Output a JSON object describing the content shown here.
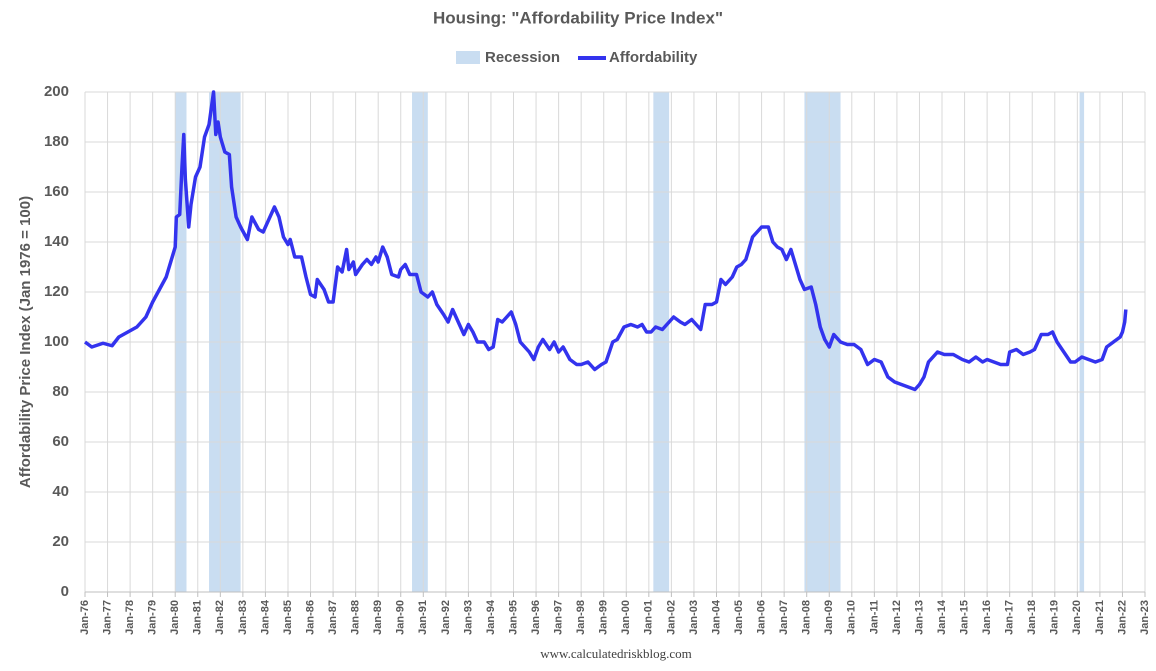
{
  "chart_data": {
    "type": "line",
    "title": "Housing: \"Affordability Price Index\"",
    "y_axis_label": "Affordability Price Index (Jan 1976 = 100)",
    "source": "www.calculatedriskblog.com",
    "grid": true,
    "xlim": [
      1976,
      2023
    ],
    "ylim": [
      0,
      200
    ],
    "yticks": [
      0,
      20,
      40,
      60,
      80,
      100,
      120,
      140,
      160,
      180,
      200
    ],
    "xticks": [
      {
        "value": 1976,
        "label": "Jan-76"
      },
      {
        "value": 1977,
        "label": "Jan-77"
      },
      {
        "value": 1978,
        "label": "Jan-78"
      },
      {
        "value": 1979,
        "label": "Jan-79"
      },
      {
        "value": 1980,
        "label": "Jan-80"
      },
      {
        "value": 1981,
        "label": "Jan-81"
      },
      {
        "value": 1982,
        "label": "Jan-82"
      },
      {
        "value": 1983,
        "label": "Jan-83"
      },
      {
        "value": 1984,
        "label": "Jan-84"
      },
      {
        "value": 1985,
        "label": "Jan-85"
      },
      {
        "value": 1986,
        "label": "Jan-86"
      },
      {
        "value": 1987,
        "label": "Jan-87"
      },
      {
        "value": 1988,
        "label": "Jan-88"
      },
      {
        "value": 1989,
        "label": "Jan-89"
      },
      {
        "value": 1990,
        "label": "Jan-90"
      },
      {
        "value": 1991,
        "label": "Jan-91"
      },
      {
        "value": 1992,
        "label": "Jan-92"
      },
      {
        "value": 1993,
        "label": "Jan-93"
      },
      {
        "value": 1994,
        "label": "Jan-94"
      },
      {
        "value": 1995,
        "label": "Jan-95"
      },
      {
        "value": 1996,
        "label": "Jan-96"
      },
      {
        "value": 1997,
        "label": "Jan-97"
      },
      {
        "value": 1998,
        "label": "Jan-98"
      },
      {
        "value": 1999,
        "label": "Jan-99"
      },
      {
        "value": 2000,
        "label": "Jan-00"
      },
      {
        "value": 2001,
        "label": "Jan-01"
      },
      {
        "value": 2002,
        "label": "Jan-02"
      },
      {
        "value": 2003,
        "label": "Jan-03"
      },
      {
        "value": 2004,
        "label": "Jan-04"
      },
      {
        "value": 2005,
        "label": "Jan-05"
      },
      {
        "value": 2006,
        "label": "Jan-06"
      },
      {
        "value": 2007,
        "label": "Jan-07"
      },
      {
        "value": 2008,
        "label": "Jan-08"
      },
      {
        "value": 2009,
        "label": "Jan-09"
      },
      {
        "value": 2010,
        "label": "Jan-10"
      },
      {
        "value": 2011,
        "label": "Jan-11"
      },
      {
        "value": 2012,
        "label": "Jan-12"
      },
      {
        "value": 2013,
        "label": "Jan-13"
      },
      {
        "value": 2014,
        "label": "Jan-14"
      },
      {
        "value": 2015,
        "label": "Jan-15"
      },
      {
        "value": 2016,
        "label": "Jan-16"
      },
      {
        "value": 2017,
        "label": "Jan-17"
      },
      {
        "value": 2018,
        "label": "Jan-18"
      },
      {
        "value": 2019,
        "label": "Jan-19"
      },
      {
        "value": 2020,
        "label": "Jan-20"
      },
      {
        "value": 2021,
        "label": "Jan-21"
      },
      {
        "value": 2022,
        "label": "Jan-22"
      },
      {
        "value": 2023,
        "label": "Jan-23"
      }
    ],
    "recessions": {
      "name": "Recession",
      "color": "#c9ddf1",
      "spans": [
        [
          1980.0,
          1980.5
        ],
        [
          1981.5,
          1982.9
        ],
        [
          1990.5,
          1991.2
        ],
        [
          2001.2,
          2001.9
        ],
        [
          2007.9,
          2009.5
        ],
        [
          2020.1,
          2020.3
        ]
      ]
    },
    "x": [
      1976.0,
      1976.3,
      1976.8,
      1977.2,
      1977.5,
      1977.9,
      1978.3,
      1978.7,
      1979.0,
      1979.3,
      1979.6,
      1979.8,
      1980.0,
      1980.05,
      1980.2,
      1980.3,
      1980.38,
      1980.45,
      1980.6,
      1980.7,
      1980.9,
      1981.1,
      1981.3,
      1981.5,
      1981.7,
      1981.8,
      1981.9,
      1982.0,
      1982.2,
      1982.4,
      1982.5,
      1982.7,
      1982.9,
      1983.2,
      1983.4,
      1983.7,
      1983.9,
      1984.1,
      1984.4,
      1984.6,
      1984.8,
      1985.0,
      1985.1,
      1985.3,
      1985.6,
      1985.8,
      1986.0,
      1986.2,
      1986.3,
      1986.6,
      1986.8,
      1987.0,
      1987.2,
      1987.4,
      1987.6,
      1987.7,
      1987.9,
      1988.0,
      1988.3,
      1988.5,
      1988.7,
      1988.9,
      1989.0,
      1989.2,
      1989.4,
      1989.6,
      1989.9,
      1990.0,
      1990.2,
      1990.4,
      1990.7,
      1990.9,
      1991.2,
      1991.4,
      1991.6,
      1991.9,
      1992.1,
      1992.3,
      1992.6,
      1992.8,
      1993.0,
      1993.2,
      1993.4,
      1993.7,
      1993.9,
      1994.1,
      1994.3,
      1994.5,
      1994.7,
      1994.9,
      1995.1,
      1995.3,
      1995.5,
      1995.7,
      1995.9,
      1996.1,
      1996.3,
      1996.6,
      1996.8,
      1997.0,
      1997.2,
      1997.5,
      1997.8,
      1998.0,
      1998.3,
      1998.6,
      1998.9,
      1999.1,
      1999.4,
      1999.6,
      1999.9,
      2000.2,
      2000.5,
      2000.7,
      2000.9,
      2001.1,
      2001.3,
      2001.6,
      2001.9,
      2002.1,
      2002.4,
      2002.6,
      2002.9,
      2003.1,
      2003.3,
      2003.5,
      2003.8,
      2004.0,
      2004.2,
      2004.4,
      2004.7,
      2004.9,
      2005.1,
      2005.3,
      2005.6,
      2005.8,
      2006.0,
      2006.3,
      2006.5,
      2006.7,
      2006.9,
      2007.1,
      2007.3,
      2007.5,
      2007.7,
      2007.9,
      2008.2,
      2008.4,
      2008.6,
      2008.8,
      2009.0,
      2009.2,
      2009.5,
      2009.8,
      2010.1,
      2010.4,
      2010.7,
      2011.0,
      2011.3,
      2011.6,
      2011.9,
      2012.2,
      2012.5,
      2012.8,
      2013.0,
      2013.2,
      2013.4,
      2013.6,
      2013.8,
      2014.1,
      2014.5,
      2014.9,
      2015.2,
      2015.5,
      2015.8,
      2016.0,
      2016.3,
      2016.6,
      2016.9,
      2017.0,
      2017.3,
      2017.6,
      2017.9,
      2018.1,
      2018.4,
      2018.7,
      2018.9,
      2019.1,
      2019.4,
      2019.7,
      2019.9,
      2020.2,
      2020.5,
      2020.8,
      2021.1,
      2021.3,
      2021.6,
      2021.9,
      2022.0,
      2022.1,
      2022.15
    ],
    "series": [
      {
        "name": "Affordability",
        "color": "#3333ee",
        "values": [
          100,
          98,
          99.5,
          98.5,
          102,
          104,
          106,
          110,
          116,
          121,
          126,
          132,
          138,
          150,
          151,
          170,
          183,
          165,
          146,
          155,
          166,
          170,
          182,
          187,
          200,
          183,
          188,
          182,
          176,
          175,
          162,
          150,
          146,
          141,
          150,
          145,
          144,
          148,
          154,
          150,
          142,
          139,
          141,
          134,
          134,
          126,
          119,
          118,
          125,
          121,
          116,
          116,
          130,
          128,
          137,
          129,
          132,
          127,
          131,
          133,
          131,
          134,
          132,
          138,
          134,
          127,
          126,
          129,
          131,
          127,
          127,
          120,
          118,
          120,
          115,
          111,
          108,
          113,
          107,
          103,
          107,
          104,
          100,
          100,
          97,
          98,
          109,
          108,
          110,
          112,
          107,
          100,
          98,
          96,
          93,
          98,
          101,
          97,
          100,
          96,
          98,
          93,
          91,
          91,
          92,
          89,
          91,
          92,
          100,
          101,
          106,
          107,
          106,
          107,
          104,
          104,
          106,
          105,
          108,
          110,
          108,
          107,
          109,
          107,
          105,
          115,
          115,
          116,
          125,
          123,
          126,
          130,
          131,
          133,
          142,
          144,
          146,
          146,
          140,
          138,
          137,
          133,
          137,
          131,
          125,
          121,
          122,
          115,
          106,
          101,
          98,
          103,
          100,
          99,
          99,
          97,
          91,
          93,
          92,
          86,
          84,
          83,
          82,
          81,
          83,
          86,
          92,
          94,
          96,
          95,
          95,
          93,
          92,
          94,
          92,
          93,
          92,
          91,
          91,
          96,
          97,
          95,
          96,
          97,
          103,
          103,
          104,
          100,
          96,
          92,
          92,
          94,
          93,
          92,
          93,
          98,
          100,
          102,
          104,
          108,
          113
        ]
      }
    ]
  }
}
